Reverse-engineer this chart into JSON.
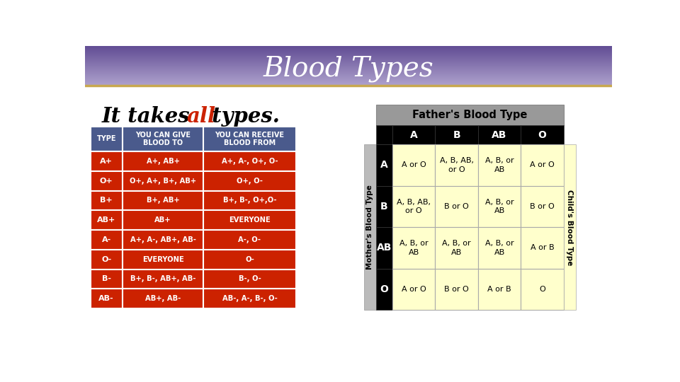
{
  "title": "Blood Types",
  "left_table": {
    "headers": [
      "TYPE",
      "YOU CAN GIVE\nBLOOD TO",
      "YOU CAN RECEIVE\nBLOOD FROM"
    ],
    "header_bg": "#4A5A8C",
    "row_bg": "#CC2200",
    "rows": [
      [
        "A+",
        "A+, AB+",
        "A+, A-, O+, O-"
      ],
      [
        "O+",
        "O+, A+, B+, AB+",
        "O+, O-"
      ],
      [
        "B+",
        "B+, AB+",
        "B+, B-, O+,O-"
      ],
      [
        "AB+",
        "AB+",
        "EVERYONE"
      ],
      [
        "A-",
        "A+, A-, AB+, AB-",
        "A-, O-"
      ],
      [
        "O-",
        "EVERYONE",
        "O-"
      ],
      [
        "B-",
        "B+, B-, AB+, AB-",
        "B-, O-"
      ],
      [
        "AB-",
        "AB+, AB-",
        "AB-, A-, B-, O-"
      ]
    ]
  },
  "right_table": {
    "title": "Father's Blood Type",
    "mother_label": "Mother's Blood Type",
    "child_label": "Child's Blood Type",
    "col_headers": [
      "A",
      "B",
      "AB",
      "O"
    ],
    "row_headers": [
      "A",
      "B",
      "AB",
      "O"
    ],
    "cells": [
      [
        "A or O",
        "A, B, AB,\nor O",
        "A, B, or\nAB",
        "A or O"
      ],
      [
        "A, B, AB,\nor O",
        "B or O",
        "A, B, or\nAB",
        "B or O"
      ],
      [
        "A, B, or\nAB",
        "A, B, or\nAB",
        "A, B, or\nAB",
        "A or B"
      ],
      [
        "A or O",
        "B or O",
        "A or B",
        "O"
      ]
    ]
  }
}
